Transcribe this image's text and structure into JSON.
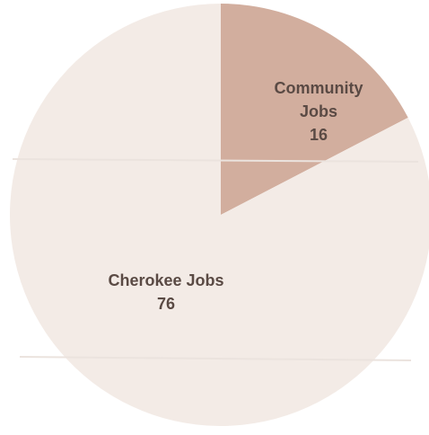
{
  "chart_data": {
    "type": "pie",
    "title": "",
    "slices": [
      {
        "label_lines": [
          "Community",
          "Jobs"
        ],
        "value": 16,
        "color": "#d2ae9e"
      },
      {
        "label_lines": [
          "Cherokee Jobs"
        ],
        "value": 76,
        "color": "#f3ebe6"
      }
    ],
    "legend": "none"
  }
}
